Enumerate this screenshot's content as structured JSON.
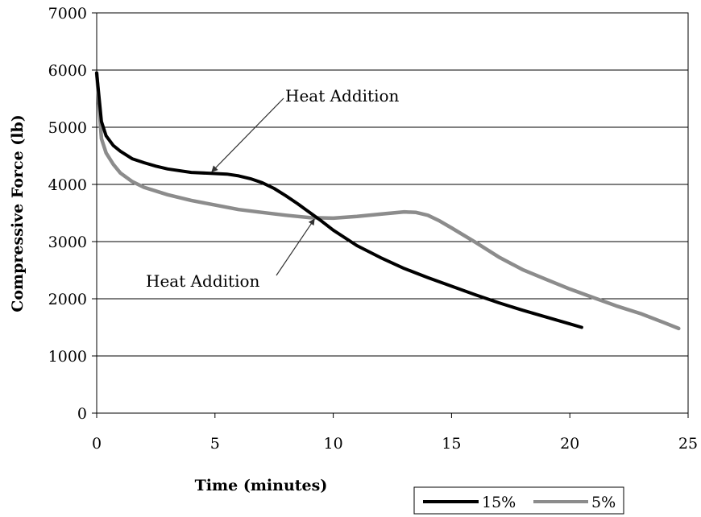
{
  "chart_data": {
    "type": "line",
    "xlabel": "Time (minutes)",
    "ylabel": "Compressive Force (lb)",
    "xlim": [
      0,
      25
    ],
    "ylim": [
      0,
      7000
    ],
    "xticks": [
      "0",
      "5",
      "10",
      "15",
      "20",
      "25"
    ],
    "yticks": [
      "0",
      "1000",
      "2000",
      "3000",
      "4000",
      "5000",
      "6000",
      "7000"
    ],
    "grid": "horizontal",
    "legend": "bottom-right",
    "series": [
      {
        "name": "15%",
        "color": "#000000",
        "x": [
          0,
          0.2,
          0.4,
          0.7,
          1,
          1.5,
          2,
          2.5,
          3,
          4,
          5,
          5.5,
          6,
          6.5,
          7,
          7.5,
          8,
          8.5,
          9,
          9.5,
          10,
          11,
          12,
          13,
          14,
          15,
          16,
          17,
          18,
          19,
          20,
          20.5
        ],
        "y": [
          5950,
          5100,
          4850,
          4680,
          4580,
          4450,
          4380,
          4320,
          4270,
          4210,
          4190,
          4180,
          4150,
          4100,
          4030,
          3930,
          3800,
          3660,
          3510,
          3360,
          3200,
          2930,
          2720,
          2530,
          2370,
          2220,
          2070,
          1930,
          1800,
          1680,
          1560,
          1500
        ]
      },
      {
        "name": "5%",
        "color": "#8c8c8c",
        "x": [
          0,
          0.2,
          0.4,
          0.7,
          1,
          1.5,
          2,
          3,
          4,
          5,
          6,
          7,
          8,
          9,
          10,
          11,
          12,
          13,
          13.5,
          14,
          14.5,
          15,
          16,
          17,
          18,
          19,
          20,
          21,
          22,
          23,
          24,
          24.6
        ],
        "y": [
          5950,
          4800,
          4550,
          4350,
          4200,
          4050,
          3950,
          3820,
          3720,
          3640,
          3560,
          3510,
          3460,
          3420,
          3410,
          3440,
          3480,
          3520,
          3510,
          3460,
          3360,
          3240,
          2990,
          2730,
          2510,
          2340,
          2170,
          2020,
          1870,
          1740,
          1580,
          1480
        ]
      }
    ],
    "annotations": [
      {
        "text": "Heat Addition",
        "x": 4.8,
        "y": 4180
      },
      {
        "text": "Heat Addition",
        "x": 9.2,
        "y": 3420
      }
    ]
  }
}
